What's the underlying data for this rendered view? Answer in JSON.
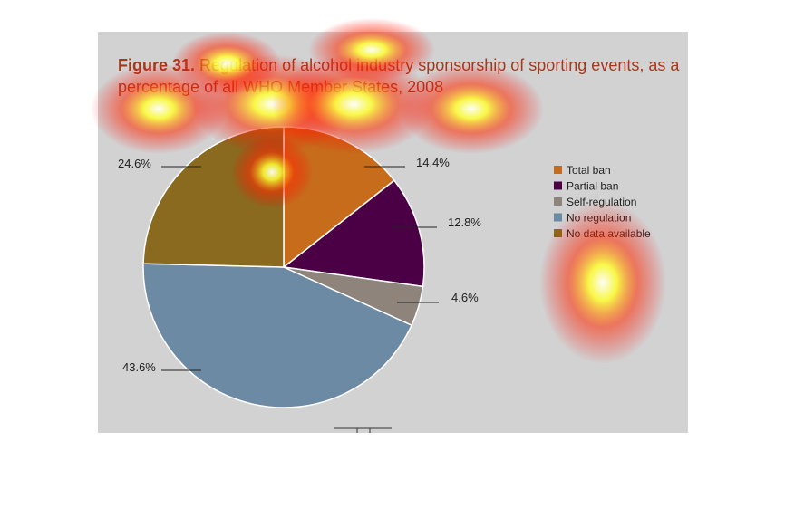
{
  "figure": {
    "number": "Figure 31.",
    "title_text": "Regulation of alcohol industry sponsorship of sporting events, as a percentage of all WHO Member States, 2008"
  },
  "chart_data": {
    "type": "pie",
    "title": "Figure 31. Regulation of alcohol industry sponsorship of sporting events, as a percentage of all WHO Member States, 2008",
    "slices": [
      {
        "label": "Total ban",
        "value": 14.4,
        "display": "14.4%",
        "color": "#c66c1b"
      },
      {
        "label": "Partial ban",
        "value": 12.8,
        "display": "12.8%",
        "color": "#4b0045"
      },
      {
        "label": "Self-regulation",
        "value": 4.6,
        "display": "4.6%",
        "color": "#8e847c"
      },
      {
        "label": "No regulation",
        "value": 43.6,
        "display": "43.6%",
        "color": "#6d8aa5"
      },
      {
        "label": "No data available",
        "value": 24.6,
        "display": "24.6%",
        "color": "#8a6a1e"
      }
    ],
    "legend_placement": "right"
  },
  "overlay": {
    "type": "attention-heatmap",
    "colors": [
      "#ff0000",
      "#ffff00",
      "#ffffff"
    ]
  }
}
